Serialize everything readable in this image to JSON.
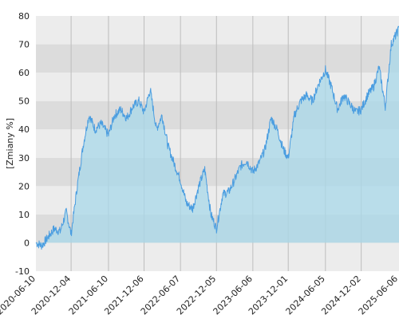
{
  "chart_data": {
    "type": "area",
    "ylabel": "[Zmiany %]",
    "ylim": [
      -10,
      80
    ],
    "y_ticks": [
      -10,
      0,
      10,
      20,
      30,
      40,
      50,
      60,
      70,
      80
    ],
    "x_ticks": [
      "2020-06-10",
      "2020-12-04",
      "2021-06-10",
      "2021-12-06",
      "2022-06-07",
      "2022-12-05",
      "2023-06-06",
      "2023-12-01",
      "2024-06-05",
      "2024-12-02",
      "2025-06-06"
    ],
    "grid": true,
    "x": [
      "2020-06-10",
      "2020-07-10",
      "2020-08-10",
      "2020-09-10",
      "2020-10-10",
      "2020-11-10",
      "2020-12-04",
      "2021-01-04",
      "2021-02-04",
      "2021-03-04",
      "2021-04-04",
      "2021-05-04",
      "2021-06-10",
      "2021-07-10",
      "2021-08-10",
      "2021-09-10",
      "2021-10-10",
      "2021-11-10",
      "2021-12-06",
      "2022-01-06",
      "2022-02-06",
      "2022-03-06",
      "2022-04-06",
      "2022-05-06",
      "2022-06-07",
      "2022-07-07",
      "2022-08-07",
      "2022-09-07",
      "2022-10-07",
      "2022-11-07",
      "2022-12-05",
      "2023-01-05",
      "2023-02-05",
      "2023-03-05",
      "2023-04-05",
      "2023-05-05",
      "2023-06-06",
      "2023-07-06",
      "2023-08-06",
      "2023-09-06",
      "2023-10-06",
      "2023-11-06",
      "2023-12-01",
      "2024-01-01",
      "2024-02-01",
      "2024-03-01",
      "2024-04-01",
      "2024-05-01",
      "2024-06-05",
      "2024-07-05",
      "2024-08-05",
      "2024-09-05",
      "2024-10-05",
      "2024-11-05",
      "2024-12-02",
      "2025-01-02",
      "2025-02-02",
      "2025-03-02",
      "2025-04-02",
      "2025-05-02",
      "2025-06-06",
      "2025-06-10"
    ],
    "series": [
      {
        "color": "#4a9de0",
        "fill": "#a8d8ea",
        "values": [
          0,
          -1,
          2,
          5,
          4,
          11,
          3,
          20,
          35,
          45,
          40,
          42,
          38,
          45,
          47,
          44,
          48,
          50,
          46,
          54,
          40,
          45,
          34,
          28,
          22,
          14,
          12,
          20,
          26,
          10,
          5,
          17,
          18,
          22,
          27,
          29,
          25,
          28,
          33,
          44,
          40,
          33,
          30,
          45,
          50,
          52,
          50,
          56,
          61,
          55,
          47,
          52,
          49,
          46,
          47,
          52,
          55,
          62,
          48,
          70,
          75,
          76
        ]
      }
    ]
  }
}
